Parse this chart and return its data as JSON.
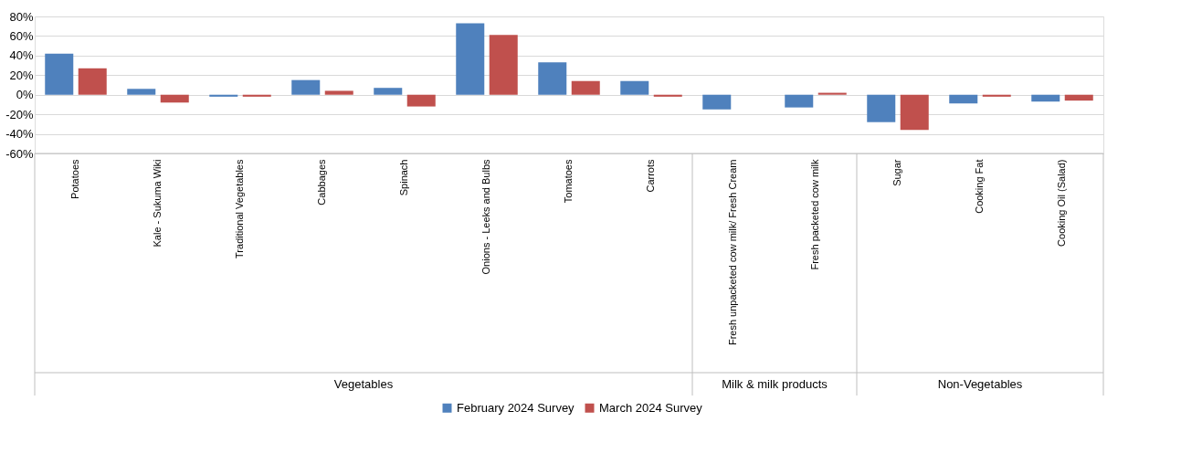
{
  "chart_data": {
    "type": "bar",
    "categories": [
      "Potatoes",
      "Kale - Sukuma Wiki",
      "Traditional Vegetables",
      "Cabbages",
      "Spinach",
      "Onions - Leeks and Bulbs",
      "Tomatoes",
      "Carrots",
      "Fresh unpacketed cow milk/ Fresh Cream",
      "Fresh packeted cow milk",
      "Sugar",
      "Cooking Fat",
      "Cooking Oil (Salad)"
    ],
    "series": [
      {
        "name": "February 2024 Survey",
        "color": "#4f81bd",
        "values": [
          42,
          6,
          -2,
          15,
          7,
          73,
          33,
          14,
          -15,
          -13,
          -28,
          -9,
          -7
        ]
      },
      {
        "name": "March 2024 Survey",
        "color": "#c0504d",
        "values": [
          27,
          -8,
          -2,
          4,
          -12,
          61,
          14,
          -2,
          null,
          2,
          -36,
          -2,
          -6
        ]
      }
    ],
    "annotations": [
      "Vegetables",
      "Milk & milk products",
      "Non-Vegetables"
    ],
    "ylim": [
      -60,
      80
    ],
    "yticks": [
      {
        "value": -60,
        "label": "-60%"
      },
      {
        "value": -40,
        "label": "-40%"
      },
      {
        "value": -20,
        "label": "-20%"
      },
      {
        "value": 0,
        "label": "0%"
      },
      {
        "value": 20,
        "label": "20%"
      },
      {
        "value": 40,
        "label": "40%"
      },
      {
        "value": 60,
        "label": "60%"
      },
      {
        "value": 80,
        "label": "80%"
      }
    ],
    "grid": "y",
    "legend": "bottom"
  }
}
